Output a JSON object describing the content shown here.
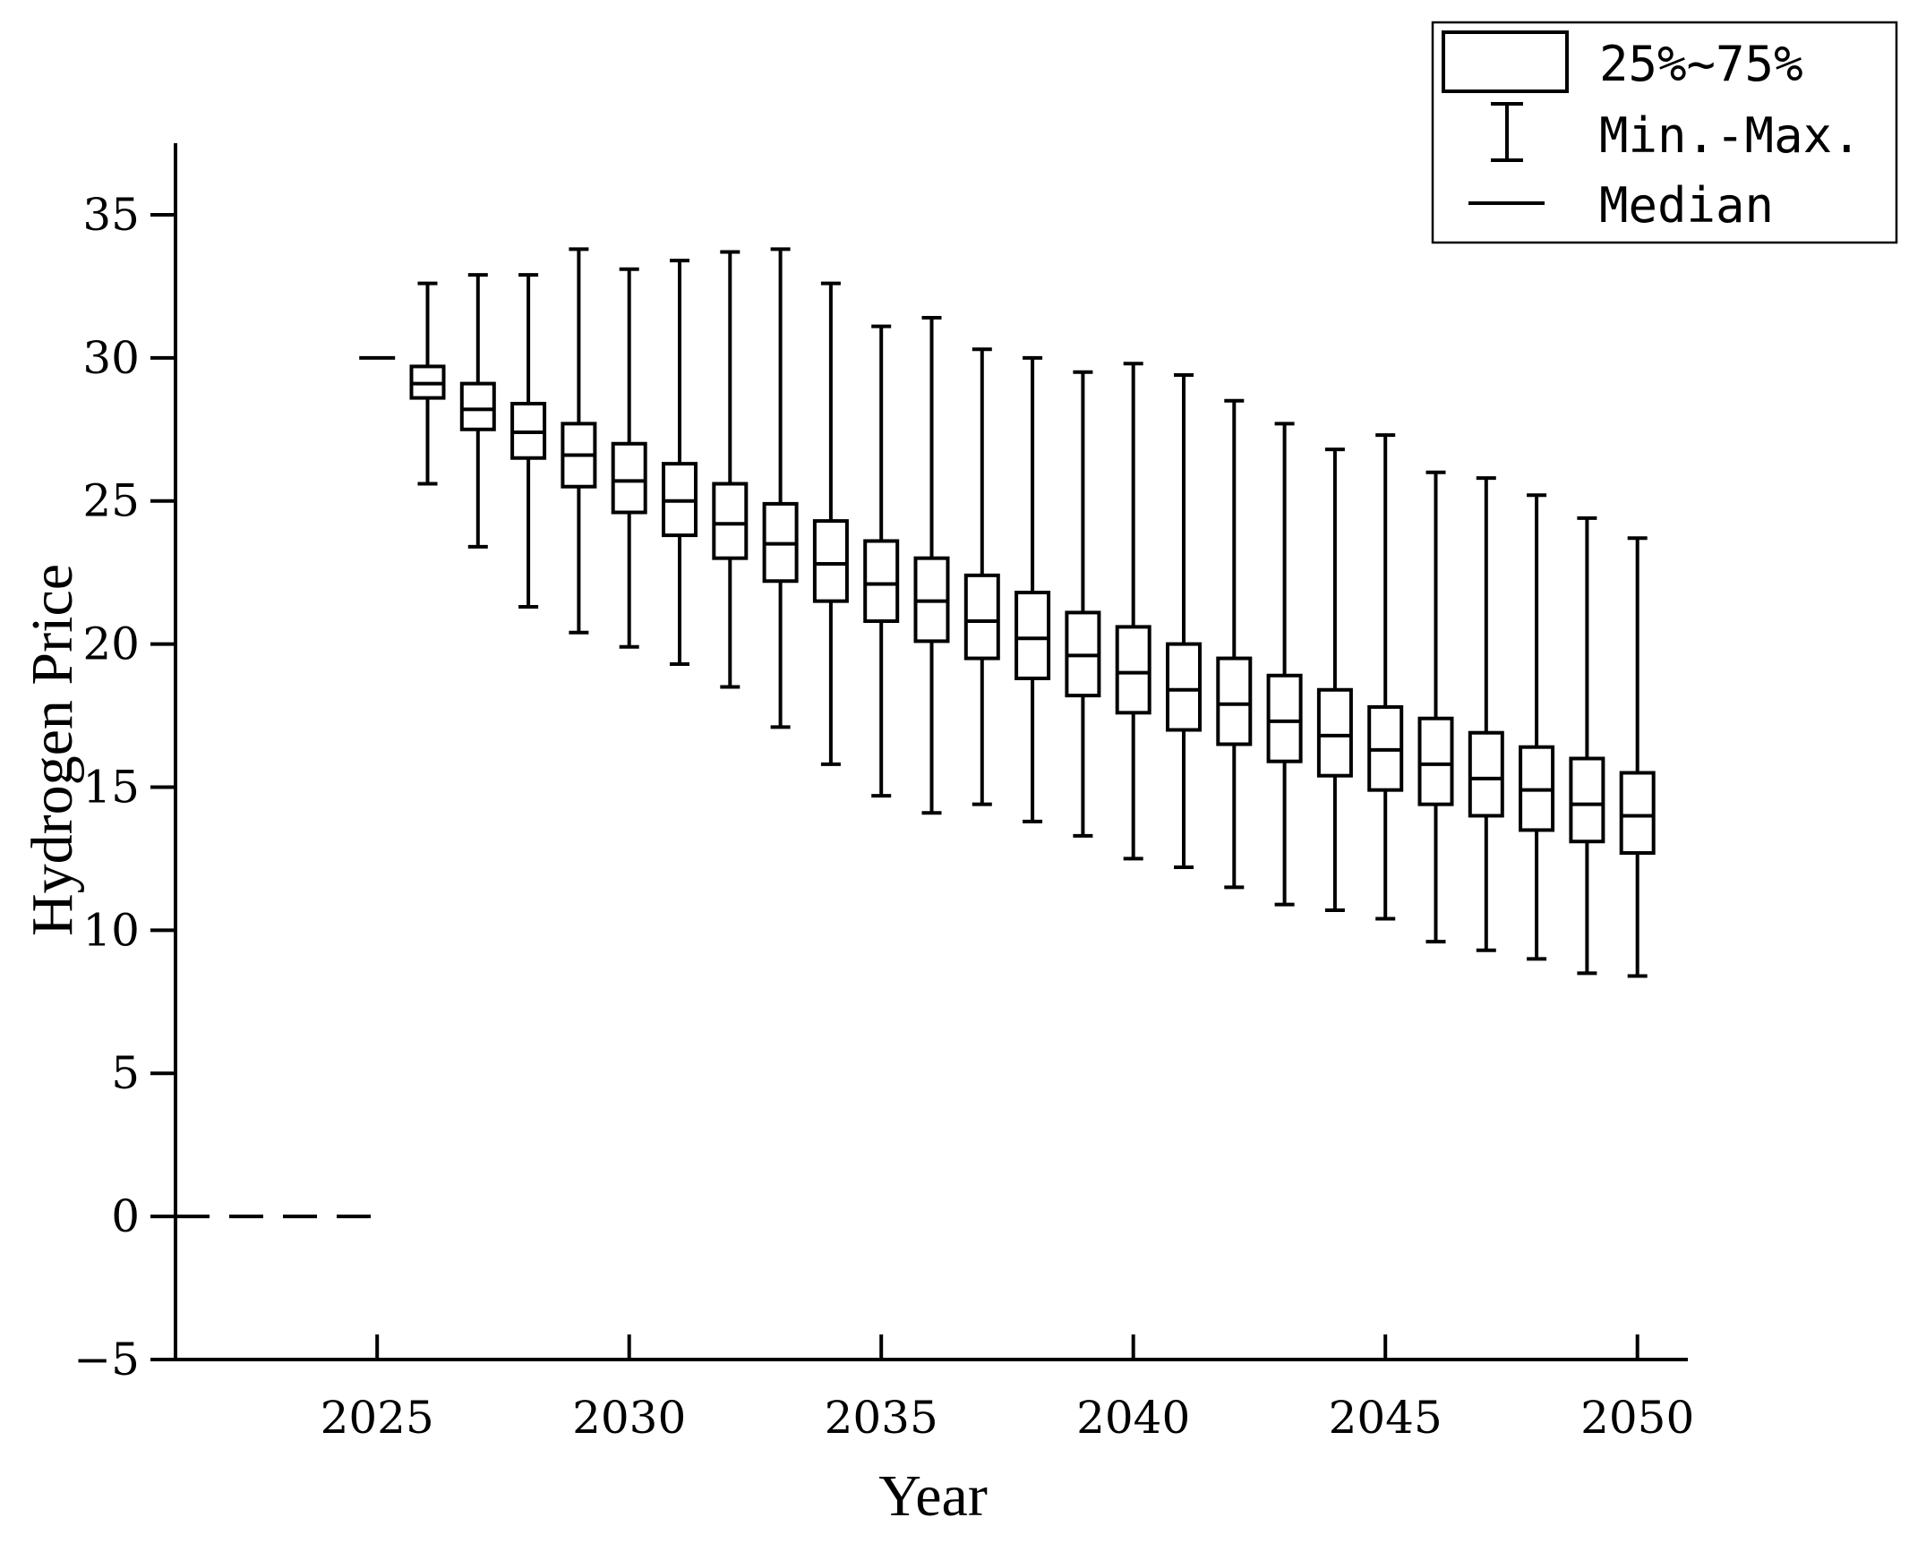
{
  "chart_data": {
    "type": "box",
    "xlabel": "Year",
    "ylabel": "Hydrogen Price",
    "xlim": [
      2021,
      2051
    ],
    "ylim": [
      -5,
      37.5
    ],
    "xticks": [
      2025,
      2030,
      2035,
      2040,
      2045,
      2050
    ],
    "yticks": [
      -5,
      0,
      5,
      10,
      15,
      20,
      25,
      30,
      35
    ],
    "grid": false,
    "legend_position": "top-right",
    "legend": {
      "box_label": "25%~75%",
      "whisker_label": "Min.-Max.",
      "median_label": "Median"
    },
    "reference": {
      "start_year": 2025,
      "value": 30
    },
    "zero_line": {
      "x_start": 2021,
      "x_end": 2024.9,
      "value": 0,
      "style": "dashed"
    },
    "boxes": [
      {
        "year": 2026,
        "min": 25.6,
        "q1": 28.6,
        "median": 29.1,
        "q3": 29.7,
        "max": 32.6
      },
      {
        "year": 2027,
        "min": 23.4,
        "q1": 27.5,
        "median": 28.2,
        "q3": 29.1,
        "max": 32.9
      },
      {
        "year": 2028,
        "min": 21.3,
        "q1": 26.5,
        "median": 27.4,
        "q3": 28.4,
        "max": 32.9
      },
      {
        "year": 2029,
        "min": 20.4,
        "q1": 25.5,
        "median": 26.6,
        "q3": 27.7,
        "max": 33.8
      },
      {
        "year": 2030,
        "min": 19.9,
        "q1": 24.6,
        "median": 25.7,
        "q3": 27.0,
        "max": 33.1
      },
      {
        "year": 2031,
        "min": 19.3,
        "q1": 23.8,
        "median": 25.0,
        "q3": 26.3,
        "max": 33.4
      },
      {
        "year": 2032,
        "min": 18.5,
        "q1": 23.0,
        "median": 24.2,
        "q3": 25.6,
        "max": 33.7
      },
      {
        "year": 2033,
        "min": 17.1,
        "q1": 22.2,
        "median": 23.5,
        "q3": 24.9,
        "max": 33.8
      },
      {
        "year": 2034,
        "min": 15.8,
        "q1": 21.5,
        "median": 22.8,
        "q3": 24.3,
        "max": 32.6
      },
      {
        "year": 2035,
        "min": 14.7,
        "q1": 20.8,
        "median": 22.1,
        "q3": 23.6,
        "max": 31.1
      },
      {
        "year": 2036,
        "min": 14.1,
        "q1": 20.1,
        "median": 21.5,
        "q3": 23.0,
        "max": 31.4
      },
      {
        "year": 2037,
        "min": 14.4,
        "q1": 19.5,
        "median": 20.8,
        "q3": 22.4,
        "max": 30.3
      },
      {
        "year": 2038,
        "min": 13.8,
        "q1": 18.8,
        "median": 20.2,
        "q3": 21.8,
        "max": 30.0
      },
      {
        "year": 2039,
        "min": 13.3,
        "q1": 18.2,
        "median": 19.6,
        "q3": 21.1,
        "max": 29.5
      },
      {
        "year": 2040,
        "min": 12.5,
        "q1": 17.6,
        "median": 19.0,
        "q3": 20.6,
        "max": 29.8
      },
      {
        "year": 2041,
        "min": 12.2,
        "q1": 17.0,
        "median": 18.4,
        "q3": 20.0,
        "max": 29.4
      },
      {
        "year": 2042,
        "min": 11.5,
        "q1": 16.5,
        "median": 17.9,
        "q3": 19.5,
        "max": 28.5
      },
      {
        "year": 2043,
        "min": 10.9,
        "q1": 15.9,
        "median": 17.3,
        "q3": 18.9,
        "max": 27.7
      },
      {
        "year": 2044,
        "min": 10.7,
        "q1": 15.4,
        "median": 16.8,
        "q3": 18.4,
        "max": 26.8
      },
      {
        "year": 2045,
        "min": 10.4,
        "q1": 14.9,
        "median": 16.3,
        "q3": 17.8,
        "max": 27.3
      },
      {
        "year": 2046,
        "min": 9.6,
        "q1": 14.4,
        "median": 15.8,
        "q3": 17.4,
        "max": 26.0
      },
      {
        "year": 2047,
        "min": 9.3,
        "q1": 14.0,
        "median": 15.3,
        "q3": 16.9,
        "max": 25.8
      },
      {
        "year": 2048,
        "min": 9.0,
        "q1": 13.5,
        "median": 14.9,
        "q3": 16.4,
        "max": 25.2
      },
      {
        "year": 2049,
        "min": 8.5,
        "q1": 13.1,
        "median": 14.4,
        "q3": 16.0,
        "max": 24.4
      },
      {
        "year": 2050,
        "min": 8.4,
        "q1": 12.7,
        "median": 14.0,
        "q3": 15.5,
        "max": 23.7
      }
    ]
  }
}
